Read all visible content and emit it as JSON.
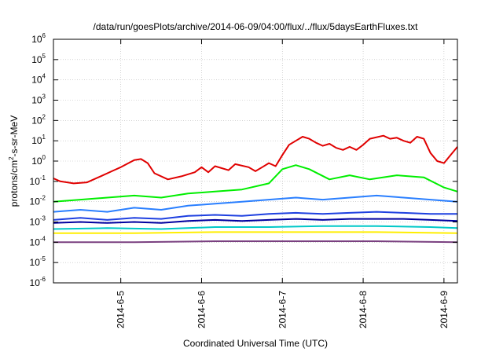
{
  "chart_data": {
    "type": "line",
    "title": "/data/run/goesPlots/archive/2014-06-09/04:00/flux/../flux/5daysEarthFluxes.txt",
    "xlabel": "Coordinated Universal Time (UTC)",
    "ylabel": {
      "prefix": "protons/cm",
      "sup": "2",
      "suffix": "-s-sr-MeV"
    },
    "yscale": "log",
    "ylim": [
      -6,
      6
    ],
    "yticks": [
      {
        "base": "10",
        "exp": "-6",
        "value": -6
      },
      {
        "base": "10",
        "exp": "-5",
        "value": -5
      },
      {
        "base": "10",
        "exp": "-4",
        "value": -4
      },
      {
        "base": "10",
        "exp": "-3",
        "value": -3
      },
      {
        "base": "10",
        "exp": "-2",
        "value": -2
      },
      {
        "base": "10",
        "exp": "-1",
        "value": -1
      },
      {
        "base": "10",
        "exp": "0",
        "value": 0
      },
      {
        "base": "10",
        "exp": "1",
        "value": 1
      },
      {
        "base": "10",
        "exp": "2",
        "value": 2
      },
      {
        "base": "10",
        "exp": "3",
        "value": 3
      },
      {
        "base": "10",
        "exp": "4",
        "value": 4
      },
      {
        "base": "10",
        "exp": "5",
        "value": 5
      },
      {
        "base": "10",
        "exp": "6",
        "value": 6
      }
    ],
    "xlim": [
      "2014-06-04 04:00",
      "2014-06-09 04:00"
    ],
    "xticks": [
      {
        "label": "2014-6-5",
        "date": "2014-06-05 00:00"
      },
      {
        "label": "2014-6-6",
        "date": "2014-06-06 00:00"
      },
      {
        "label": "2014-6-7",
        "date": "2014-06-07 00:00"
      },
      {
        "label": "2014-6-8",
        "date": "2014-06-08 00:00"
      },
      {
        "label": "2014-6-9",
        "date": "2014-06-09 00:00"
      }
    ],
    "grid": true,
    "series": [
      {
        "color": "#e00000",
        "points": [
          [
            "2014-06-04 04:00",
            -0.85
          ],
          [
            "2014-06-04 06:00",
            -1.0
          ],
          [
            "2014-06-04 10:00",
            -1.1
          ],
          [
            "2014-06-04 14:00",
            -1.05
          ],
          [
            "2014-06-04 18:00",
            -0.75
          ],
          [
            "2014-06-04 22:00",
            -0.45
          ],
          [
            "2014-06-05 00:00",
            -0.3
          ],
          [
            "2014-06-05 04:00",
            0.05
          ],
          [
            "2014-06-05 06:00",
            0.1
          ],
          [
            "2014-06-05 08:00",
            -0.1
          ],
          [
            "2014-06-05 10:00",
            -0.6
          ],
          [
            "2014-06-05 14:00",
            -0.9
          ],
          [
            "2014-06-05 18:00",
            -0.75
          ],
          [
            "2014-06-05 22:00",
            -0.55
          ],
          [
            "2014-06-06 00:00",
            -0.3
          ],
          [
            "2014-06-06 02:00",
            -0.55
          ],
          [
            "2014-06-06 04:00",
            -0.25
          ],
          [
            "2014-06-06 08:00",
            -0.45
          ],
          [
            "2014-06-06 10:00",
            -0.15
          ],
          [
            "2014-06-06 14:00",
            -0.3
          ],
          [
            "2014-06-06 16:00",
            -0.5
          ],
          [
            "2014-06-06 18:00",
            -0.3
          ],
          [
            "2014-06-06 20:00",
            -0.1
          ],
          [
            "2014-06-06 22:00",
            -0.25
          ],
          [
            "2014-06-07 00:00",
            0.3
          ],
          [
            "2014-06-07 02:00",
            0.8
          ],
          [
            "2014-06-07 04:00",
            1.0
          ],
          [
            "2014-06-07 06:00",
            1.2
          ],
          [
            "2014-06-07 08:00",
            1.1
          ],
          [
            "2014-06-07 10:00",
            0.9
          ],
          [
            "2014-06-07 12:00",
            0.75
          ],
          [
            "2014-06-07 14:00",
            0.85
          ],
          [
            "2014-06-07 16:00",
            0.65
          ],
          [
            "2014-06-07 18:00",
            0.55
          ],
          [
            "2014-06-07 20:00",
            0.7
          ],
          [
            "2014-06-07 22:00",
            0.55
          ],
          [
            "2014-06-08 00:00",
            0.8
          ],
          [
            "2014-06-08 02:00",
            1.1
          ],
          [
            "2014-06-08 06:00",
            1.25
          ],
          [
            "2014-06-08 08:00",
            1.1
          ],
          [
            "2014-06-08 10:00",
            1.15
          ],
          [
            "2014-06-08 12:00",
            1.0
          ],
          [
            "2014-06-08 14:00",
            0.9
          ],
          [
            "2014-06-08 16:00",
            1.2
          ],
          [
            "2014-06-08 18:00",
            1.1
          ],
          [
            "2014-06-08 20:00",
            0.4
          ],
          [
            "2014-06-08 22:00",
            0.0
          ],
          [
            "2014-06-09 00:00",
            -0.1
          ],
          [
            "2014-06-09 02:00",
            0.3
          ],
          [
            "2014-06-09 04:00",
            0.7
          ]
        ]
      },
      {
        "color": "#00ee00",
        "points": [
          [
            "2014-06-04 04:00",
            -2.0
          ],
          [
            "2014-06-04 12:00",
            -1.9
          ],
          [
            "2014-06-04 20:00",
            -1.8
          ],
          [
            "2014-06-05 04:00",
            -1.7
          ],
          [
            "2014-06-05 12:00",
            -1.8
          ],
          [
            "2014-06-05 20:00",
            -1.6
          ],
          [
            "2014-06-06 04:00",
            -1.5
          ],
          [
            "2014-06-06 12:00",
            -1.4
          ],
          [
            "2014-06-06 20:00",
            -1.1
          ],
          [
            "2014-06-07 00:00",
            -0.4
          ],
          [
            "2014-06-07 04:00",
            -0.2
          ],
          [
            "2014-06-07 08:00",
            -0.4
          ],
          [
            "2014-06-07 14:00",
            -0.9
          ],
          [
            "2014-06-07 20:00",
            -0.7
          ],
          [
            "2014-06-08 02:00",
            -0.9
          ],
          [
            "2014-06-08 10:00",
            -0.7
          ],
          [
            "2014-06-08 18:00",
            -0.8
          ],
          [
            "2014-06-09 00:00",
            -1.3
          ],
          [
            "2014-06-09 04:00",
            -1.5
          ]
        ]
      },
      {
        "color": "#2a7fff",
        "points": [
          [
            "2014-06-04 04:00",
            -2.5
          ],
          [
            "2014-06-04 12:00",
            -2.4
          ],
          [
            "2014-06-04 20:00",
            -2.5
          ],
          [
            "2014-06-05 04:00",
            -2.3
          ],
          [
            "2014-06-05 12:00",
            -2.4
          ],
          [
            "2014-06-05 20:00",
            -2.2
          ],
          [
            "2014-06-06 04:00",
            -2.1
          ],
          [
            "2014-06-06 12:00",
            -2.0
          ],
          [
            "2014-06-06 20:00",
            -1.9
          ],
          [
            "2014-06-07 04:00",
            -1.8
          ],
          [
            "2014-06-07 12:00",
            -1.9
          ],
          [
            "2014-06-07 20:00",
            -1.8
          ],
          [
            "2014-06-08 04:00",
            -1.7
          ],
          [
            "2014-06-08 12:00",
            -1.8
          ],
          [
            "2014-06-08 20:00",
            -1.9
          ],
          [
            "2014-06-09 04:00",
            -2.0
          ]
        ]
      },
      {
        "color": "#1e40e0",
        "points": [
          [
            "2014-06-04 04:00",
            -2.9
          ],
          [
            "2014-06-04 12:00",
            -2.8
          ],
          [
            "2014-06-04 20:00",
            -2.9
          ],
          [
            "2014-06-05 04:00",
            -2.8
          ],
          [
            "2014-06-05 12:00",
            -2.85
          ],
          [
            "2014-06-05 20:00",
            -2.7
          ],
          [
            "2014-06-06 04:00",
            -2.65
          ],
          [
            "2014-06-06 12:00",
            -2.7
          ],
          [
            "2014-06-06 20:00",
            -2.6
          ],
          [
            "2014-06-07 04:00",
            -2.55
          ],
          [
            "2014-06-07 12:00",
            -2.6
          ],
          [
            "2014-06-07 20:00",
            -2.55
          ],
          [
            "2014-06-08 04:00",
            -2.5
          ],
          [
            "2014-06-08 12:00",
            -2.55
          ],
          [
            "2014-06-08 20:00",
            -2.6
          ],
          [
            "2014-06-09 04:00",
            -2.6
          ]
        ]
      },
      {
        "color": "#0000a0",
        "points": [
          [
            "2014-06-04 04:00",
            -3.05
          ],
          [
            "2014-06-04 12:00",
            -3.0
          ],
          [
            "2014-06-04 20:00",
            -3.05
          ],
          [
            "2014-06-05 04:00",
            -3.0
          ],
          [
            "2014-06-05 12:00",
            -3.05
          ],
          [
            "2014-06-05 20:00",
            -2.95
          ],
          [
            "2014-06-06 04:00",
            -2.9
          ],
          [
            "2014-06-06 12:00",
            -2.95
          ],
          [
            "2014-06-06 20:00",
            -2.9
          ],
          [
            "2014-06-07 04:00",
            -2.85
          ],
          [
            "2014-06-07 12:00",
            -2.9
          ],
          [
            "2014-06-07 20:00",
            -2.85
          ],
          [
            "2014-06-08 04:00",
            -2.85
          ],
          [
            "2014-06-08 12:00",
            -2.85
          ],
          [
            "2014-06-08 20:00",
            -2.9
          ],
          [
            "2014-06-09 04:00",
            -2.95
          ]
        ]
      },
      {
        "color": "#00c8c8",
        "points": [
          [
            "2014-06-04 04:00",
            -3.35
          ],
          [
            "2014-06-04 20:00",
            -3.3
          ],
          [
            "2014-06-05 12:00",
            -3.35
          ],
          [
            "2014-06-06 04:00",
            -3.25
          ],
          [
            "2014-06-06 20:00",
            -3.25
          ],
          [
            "2014-06-07 12:00",
            -3.2
          ],
          [
            "2014-06-08 04:00",
            -3.2
          ],
          [
            "2014-06-08 20:00",
            -3.25
          ],
          [
            "2014-06-09 04:00",
            -3.3
          ]
        ]
      },
      {
        "color": "#ffee00",
        "points": [
          [
            "2014-06-04 04:00",
            -3.55
          ],
          [
            "2014-06-05 04:00",
            -3.55
          ],
          [
            "2014-06-06 04:00",
            -3.5
          ],
          [
            "2014-06-07 04:00",
            -3.5
          ],
          [
            "2014-06-08 04:00",
            -3.5
          ],
          [
            "2014-06-09 04:00",
            -3.55
          ]
        ]
      },
      {
        "color": "#7a4080",
        "points": [
          [
            "2014-06-04 04:00",
            -4.0
          ],
          [
            "2014-06-05 04:00",
            -4.0
          ],
          [
            "2014-06-06 04:00",
            -3.95
          ],
          [
            "2014-06-07 04:00",
            -3.95
          ],
          [
            "2014-06-08 04:00",
            -3.95
          ],
          [
            "2014-06-09 04:00",
            -4.0
          ]
        ]
      }
    ]
  }
}
